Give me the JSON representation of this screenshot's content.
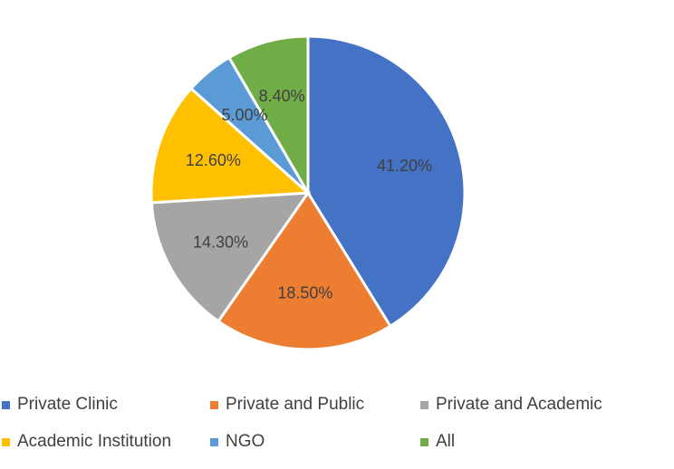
{
  "chart_data": {
    "type": "pie",
    "title": "",
    "slices": [
      {
        "label": "Private Clinic",
        "value": 41.2,
        "display": "41.20%",
        "color": "#4472C4"
      },
      {
        "label": "Private and Public",
        "value": 18.5,
        "display": "18.50%",
        "color": "#ED7D31"
      },
      {
        "label": "Private and Academic",
        "value": 14.3,
        "display": "14.30%",
        "color": "#A5A5A5"
      },
      {
        "label": "Academic Institution",
        "value": 12.6,
        "display": "12.60%",
        "color": "#FFC000"
      },
      {
        "label": "NGO",
        "value": 5.0,
        "display": "5.00%",
        "color": "#5B9BD5"
      },
      {
        "label": "All",
        "value": 8.4,
        "display": "8.40%",
        "color": "#70AD47"
      }
    ],
    "start_angle": "12 o'clock",
    "direction": "clockwise",
    "legend_position": "bottom",
    "data_labels": true
  }
}
